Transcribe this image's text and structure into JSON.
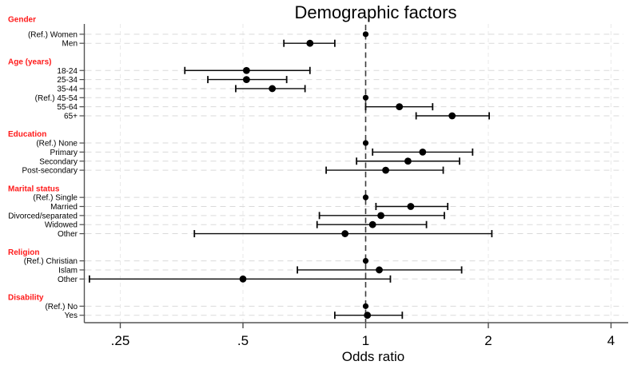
{
  "chart_data": {
    "type": "scatter",
    "subtype": "forest-plot",
    "title": "Demographic factors",
    "xlabel": "Odds ratio",
    "x_scale": "log2",
    "xlim": [
      0.2,
      4.3
    ],
    "grid": true,
    "reference_line": 1,
    "header_color": "#ff1a1a",
    "marker_color": "#000000",
    "x_ticks": [
      {
        "label": ".25",
        "value": 0.25
      },
      {
        "label": ".5",
        "value": 0.5
      },
      {
        "label": "1",
        "value": 1
      },
      {
        "label": "2",
        "value": 2
      },
      {
        "label": "4",
        "value": 4
      }
    ],
    "groups": [
      {
        "label": "Gender",
        "items": [
          {
            "label": "(Ref.) Women",
            "ref": true,
            "or": 1.0
          },
          {
            "label": "Men",
            "ref": false,
            "or": 0.73,
            "lo": 0.63,
            "hi": 0.84
          }
        ]
      },
      {
        "label": "Age (years)",
        "items": [
          {
            "label": "18-24",
            "ref": false,
            "or": 0.51,
            "lo": 0.36,
            "hi": 0.73
          },
          {
            "label": "25-34",
            "ref": false,
            "or": 0.51,
            "lo": 0.41,
            "hi": 0.64
          },
          {
            "label": "35-44",
            "ref": false,
            "or": 0.59,
            "lo": 0.48,
            "hi": 0.71
          },
          {
            "label": "(Ref.) 45-54",
            "ref": true,
            "or": 1.0
          },
          {
            "label": "55-64",
            "ref": false,
            "or": 1.21,
            "lo": 1.0,
            "hi": 1.46
          },
          {
            "label": "65+",
            "ref": false,
            "or": 1.63,
            "lo": 1.33,
            "hi": 2.01
          }
        ]
      },
      {
        "label": "Education",
        "items": [
          {
            "label": "(Ref.) None",
            "ref": true,
            "or": 1.0
          },
          {
            "label": "Primary",
            "ref": false,
            "or": 1.38,
            "lo": 1.04,
            "hi": 1.83
          },
          {
            "label": "Secondary",
            "ref": false,
            "or": 1.27,
            "lo": 0.95,
            "hi": 1.7
          },
          {
            "label": "Post-secondary",
            "ref": false,
            "or": 1.12,
            "lo": 0.8,
            "hi": 1.55
          }
        ]
      },
      {
        "label": "Marital status",
        "items": [
          {
            "label": "(Ref.) Single",
            "ref": true,
            "or": 1.0
          },
          {
            "label": "Married",
            "ref": false,
            "or": 1.29,
            "lo": 1.06,
            "hi": 1.59
          },
          {
            "label": "Divorced/separated",
            "ref": false,
            "or": 1.09,
            "lo": 0.77,
            "hi": 1.56
          },
          {
            "label": "Widowed",
            "ref": false,
            "or": 1.04,
            "lo": 0.76,
            "hi": 1.41
          },
          {
            "label": "Other",
            "ref": false,
            "or": 0.89,
            "lo": 0.38,
            "hi": 2.04
          }
        ]
      },
      {
        "label": "Religion",
        "items": [
          {
            "label": "(Ref.) Christian",
            "ref": true,
            "or": 1.0
          },
          {
            "label": "Islam",
            "ref": false,
            "or": 1.08,
            "lo": 0.68,
            "hi": 1.72
          },
          {
            "label": "Other",
            "ref": false,
            "or": 0.5,
            "lo": 0.21,
            "hi": 1.15
          }
        ]
      },
      {
        "label": "Disability",
        "items": [
          {
            "label": "(Ref.) No",
            "ref": true,
            "or": 1.0
          },
          {
            "label": "Yes",
            "ref": false,
            "or": 1.01,
            "lo": 0.84,
            "hi": 1.23
          }
        ]
      }
    ]
  }
}
